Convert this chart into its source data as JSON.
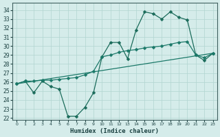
{
  "xlabel": "Humidex (Indice chaleur)",
  "xlim": [
    -0.5,
    23.5
  ],
  "ylim": [
    21.8,
    34.8
  ],
  "yticks": [
    22,
    23,
    24,
    25,
    26,
    27,
    28,
    29,
    30,
    31,
    32,
    33,
    34
  ],
  "xticks": [
    0,
    1,
    2,
    3,
    4,
    5,
    6,
    7,
    8,
    9,
    10,
    11,
    12,
    13,
    14,
    15,
    16,
    17,
    18,
    19,
    20,
    21,
    22,
    23
  ],
  "bg_color": "#d5ecea",
  "grid_color": "#b0d5d0",
  "line1_x": [
    0,
    1,
    2,
    3,
    4,
    5,
    6,
    7,
    8,
    9,
    10,
    11,
    12,
    13,
    14,
    15,
    16,
    17,
    18,
    19,
    20,
    21,
    22,
    23
  ],
  "line1_y": [
    25.8,
    26.1,
    24.8,
    26.1,
    25.5,
    25.2,
    22.2,
    22.2,
    23.2,
    24.8,
    28.8,
    30.4,
    30.4,
    28.6,
    31.8,
    33.8,
    33.6,
    33.0,
    33.8,
    33.2,
    32.9,
    29.0,
    28.4,
    29.2
  ],
  "line2_x": [
    0,
    23
  ],
  "line2_y": [
    25.8,
    29.2
  ],
  "line3_x": [
    0,
    1,
    2,
    3,
    4,
    5,
    6,
    7,
    8,
    9,
    10,
    11,
    12,
    13,
    14,
    15,
    16,
    17,
    18,
    19,
    20,
    21,
    22,
    23
  ],
  "line3_y": [
    25.8,
    26.1,
    26.1,
    26.2,
    26.2,
    26.3,
    26.4,
    26.5,
    26.8,
    27.2,
    28.8,
    29.0,
    29.3,
    29.5,
    29.6,
    29.8,
    29.9,
    30.0,
    30.2,
    30.4,
    30.5,
    29.0,
    28.7,
    29.2
  ],
  "line_color1": "#1a6b5a",
  "line_color2": "#1a7868",
  "line_color3": "#1a7868",
  "marker_size": 2.5,
  "line_width": 0.9,
  "tick_fontsize": 5.5,
  "xlabel_fontsize": 6.5,
  "tick_color": "#1a4040",
  "spine_color": "#406060"
}
